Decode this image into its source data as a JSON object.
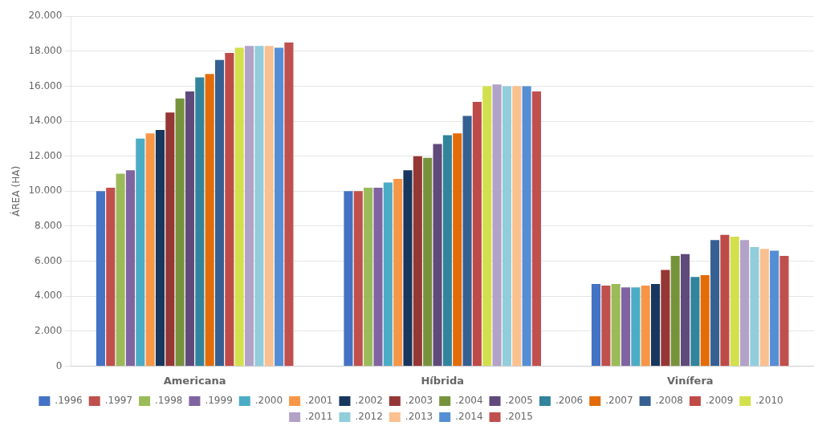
{
  "chart_data": {
    "type": "bar",
    "categories": [
      "Americana",
      "Híbrida",
      "Vinífera"
    ],
    "series": [
      {
        "name": ".1996",
        "color": "#4472C4",
        "values": [
          10000,
          10000,
          4700
        ]
      },
      {
        "name": ".1997",
        "color": "#C0504D",
        "values": [
          10200,
          10000,
          4600
        ]
      },
      {
        "name": ".1998",
        "color": "#9BBB59",
        "values": [
          11000,
          10200,
          4700
        ]
      },
      {
        "name": ".1999",
        "color": "#8064A2",
        "values": [
          11200,
          10200,
          4500
        ]
      },
      {
        "name": ".2000",
        "color": "#4BACC6",
        "values": [
          13000,
          10500,
          4500
        ]
      },
      {
        "name": ".2001",
        "color": "#F79646",
        "values": [
          13300,
          10700,
          4600
        ]
      },
      {
        "name": ".2002",
        "color": "#17375E",
        "values": [
          13500,
          11200,
          4700
        ]
      },
      {
        "name": ".2003",
        "color": "#953735",
        "values": [
          14500,
          12000,
          5500
        ]
      },
      {
        "name": ".2004",
        "color": "#76933C",
        "values": [
          15300,
          11900,
          6300
        ]
      },
      {
        "name": ".2005",
        "color": "#604A7B",
        "values": [
          15700,
          12700,
          6400
        ]
      },
      {
        "name": ".2006",
        "color": "#31849B",
        "values": [
          16500,
          13200,
          5100
        ]
      },
      {
        "name": ".2007",
        "color": "#E36C09",
        "values": [
          16700,
          13300,
          5200
        ]
      },
      {
        "name": ".2008",
        "color": "#366092",
        "values": [
          17500,
          14300,
          7200
        ]
      },
      {
        "name": ".2009",
        "color": "#BE4B48",
        "values": [
          17900,
          15100,
          7500
        ]
      },
      {
        "name": ".2010",
        "color": "#D3E04E",
        "values": [
          18200,
          16000,
          7400
        ]
      },
      {
        "name": ".2011",
        "color": "#B3A2C7",
        "values": [
          18300,
          16100,
          7200
        ]
      },
      {
        "name": ".2012",
        "color": "#92CDDC",
        "values": [
          18300,
          16000,
          6800
        ]
      },
      {
        "name": ".2013",
        "color": "#FAC090",
        "values": [
          18300,
          16000,
          6700
        ]
      },
      {
        "name": ".2014",
        "color": "#558ED5",
        "values": [
          18200,
          16000,
          6600
        ]
      },
      {
        "name": ".2015",
        "color": "#C0504D",
        "values": [
          18500,
          15700,
          6300
        ]
      }
    ],
    "ylabel": "ÁREA (HA)",
    "ylim": [
      0,
      20000
    ],
    "yticks": [
      0,
      {
        "value": 2000,
        "label": "2.000"
      },
      {
        "value": 4000,
        "label": "4.000"
      },
      {
        "value": 6000,
        "label": "6.000"
      },
      {
        "value": 8000,
        "label": "8.000"
      },
      {
        "value": 10000,
        "label": "10.000"
      },
      {
        "value": 12000,
        "label": "12.000"
      },
      {
        "value": 14000,
        "label": "14.000"
      },
      {
        "value": 16000,
        "label": "16.000"
      },
      {
        "value": 18000,
        "label": "18.000"
      },
      {
        "value": 20000,
        "label": "20.000"
      }
    ],
    "grid": true,
    "legend": "bottom"
  }
}
